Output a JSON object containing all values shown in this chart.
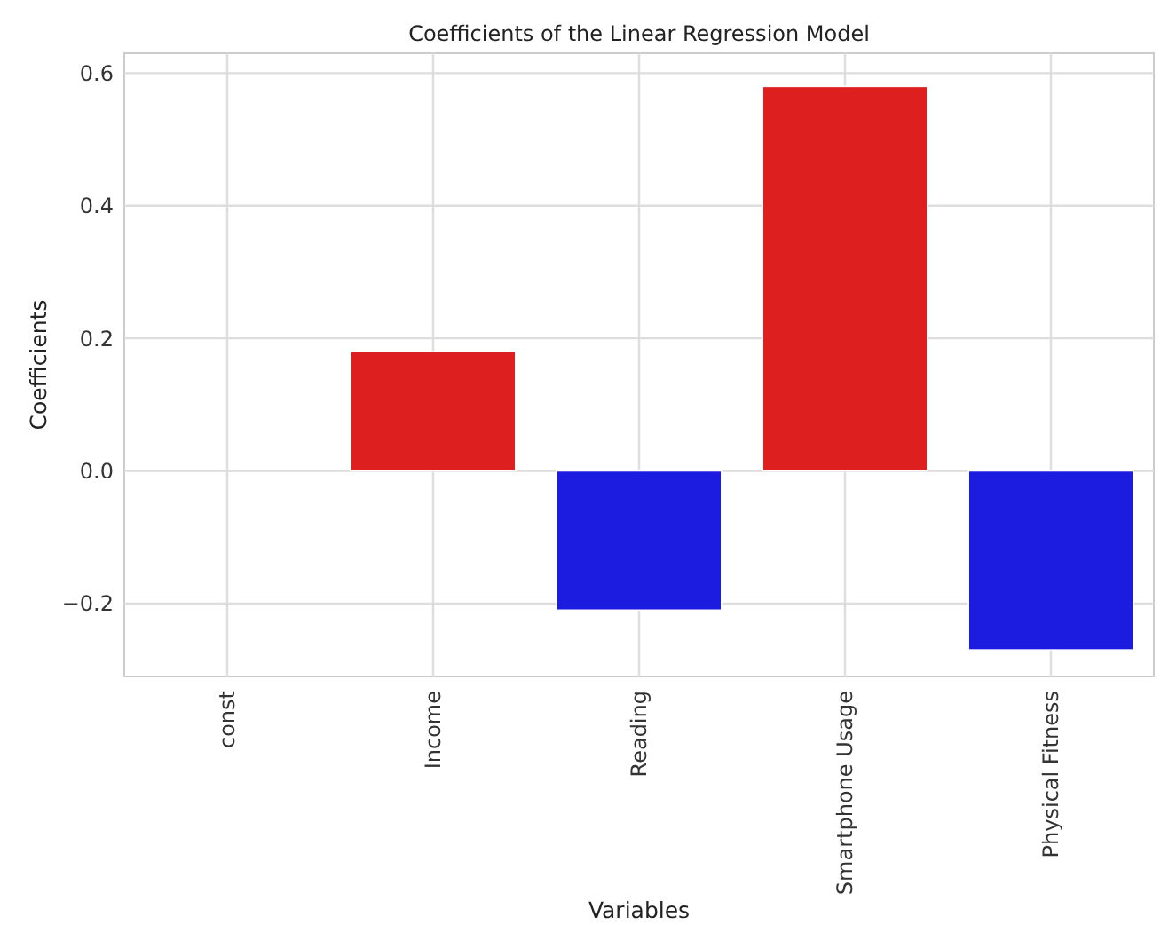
{
  "chart_data": {
    "type": "bar",
    "title": "Coefficients of the Linear Regression Model",
    "xlabel": "Variables",
    "ylabel": "Coefficients",
    "categories": [
      "const",
      "Income",
      "Reading",
      "Smartphone Usage",
      "Physical Fitness"
    ],
    "values": [
      0,
      0.18,
      -0.21,
      0.58,
      -0.27
    ],
    "colors": [
      "#ffffff",
      "#dd1f1f",
      "#1c1ce0",
      "#dd1f1f",
      "#1c1ce0"
    ],
    "ylim": [
      -0.31,
      0.63
    ],
    "yticks": [
      {
        "value": -0.2,
        "label": "−0.2"
      },
      {
        "value": 0,
        "label": "0.0"
      },
      {
        "value": 0.2,
        "label": "0.2"
      },
      {
        "value": 0.4,
        "label": "0.4"
      },
      {
        "value": 0.6,
        "label": "0.6"
      }
    ],
    "grid": true
  }
}
